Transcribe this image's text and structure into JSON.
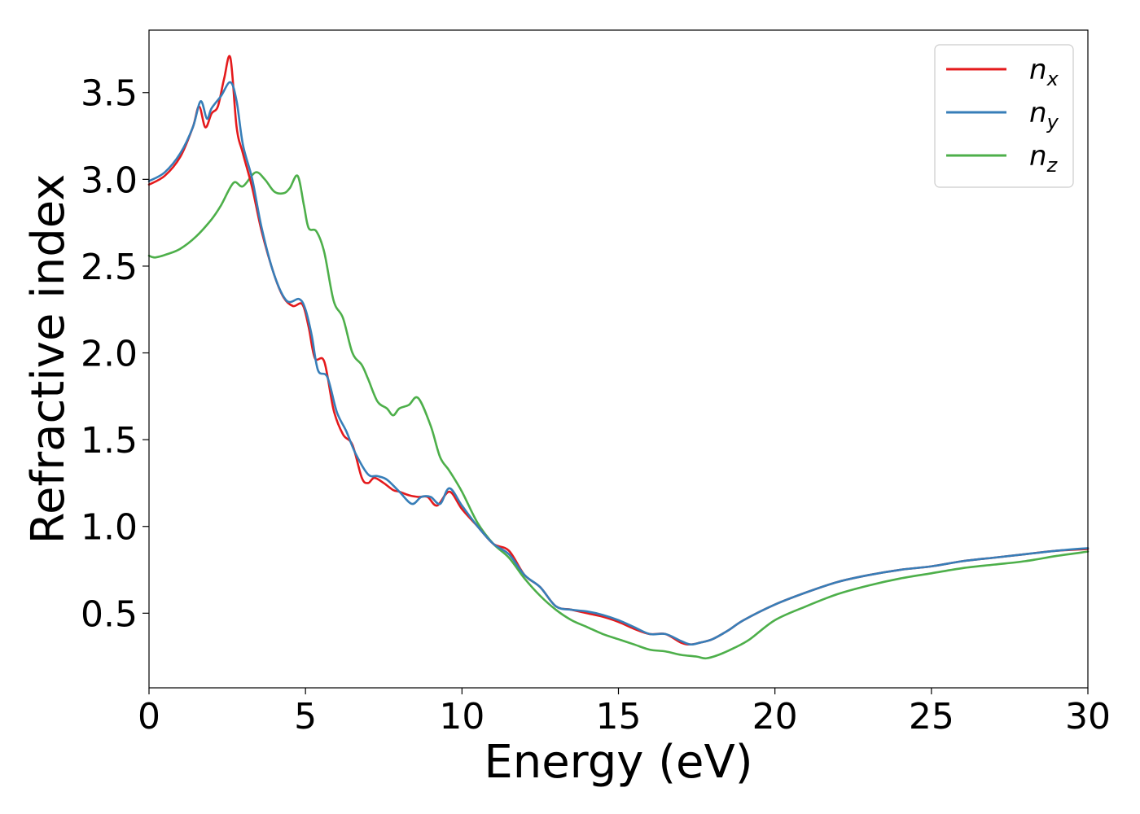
{
  "chart_data": {
    "type": "line",
    "xlabel": "Energy (eV)",
    "ylabel": "Refractive index",
    "xlim": [
      0,
      30
    ],
    "ylim": [
      0.07,
      3.86
    ],
    "xticks": [
      0,
      5,
      10,
      15,
      20,
      25,
      30
    ],
    "xtick_labels": [
      "0",
      "5",
      "10",
      "15",
      "20",
      "25",
      "30"
    ],
    "yticks": [
      0.5,
      1.0,
      1.5,
      2.0,
      2.5,
      3.0,
      3.5
    ],
    "ytick_labels": [
      "0.5",
      "1.0",
      "1.5",
      "2.0",
      "2.5",
      "3.0",
      "3.5"
    ],
    "grid": false,
    "legend_position": "top-right",
    "series": [
      {
        "name": "n_x",
        "label_main": "n",
        "label_sub": "x",
        "color": "#e41a1c",
        "x": [
          0,
          0.5,
          1.0,
          1.4,
          1.6,
          1.8,
          2.0,
          2.2,
          2.4,
          2.6,
          2.8,
          3.0,
          3.3,
          3.6,
          4.0,
          4.3,
          4.6,
          4.9,
          5.1,
          5.3,
          5.6,
          5.9,
          6.2,
          6.5,
          6.8,
          7.0,
          7.2,
          7.5,
          7.8,
          8.0,
          8.3,
          8.6,
          8.9,
          9.2,
          9.6,
          10.0,
          10.5,
          11.0,
          11.5,
          12.0,
          12.5,
          13.0,
          13.5,
          14.0,
          14.5,
          15.0,
          15.5,
          16.0,
          16.5,
          17.0,
          17.3,
          17.6,
          18.0,
          18.5,
          19.0,
          20.0,
          21.0,
          22.0,
          23.0,
          24.0,
          25.0,
          26.0,
          27.0,
          28.0,
          29.0,
          30.0
        ],
        "y": [
          2.97,
          3.02,
          3.13,
          3.3,
          3.42,
          3.3,
          3.38,
          3.42,
          3.58,
          3.7,
          3.3,
          3.15,
          2.95,
          2.7,
          2.45,
          2.32,
          2.27,
          2.28,
          2.15,
          1.97,
          1.95,
          1.67,
          1.53,
          1.47,
          1.28,
          1.25,
          1.28,
          1.25,
          1.21,
          1.2,
          1.18,
          1.17,
          1.17,
          1.12,
          1.2,
          1.1,
          1.0,
          0.9,
          0.86,
          0.72,
          0.65,
          0.54,
          0.52,
          0.5,
          0.48,
          0.45,
          0.41,
          0.38,
          0.38,
          0.33,
          0.32,
          0.33,
          0.35,
          0.4,
          0.46,
          0.55,
          0.62,
          0.68,
          0.72,
          0.75,
          0.77,
          0.8,
          0.82,
          0.84,
          0.86,
          0.87
        ]
      },
      {
        "name": "n_y",
        "label_main": "n",
        "label_sub": "y",
        "color": "#377eb8",
        "x": [
          0,
          0.5,
          1.0,
          1.4,
          1.65,
          1.85,
          2.0,
          2.3,
          2.6,
          2.8,
          3.0,
          3.3,
          3.6,
          4.0,
          4.4,
          4.8,
          5.0,
          5.2,
          5.4,
          5.7,
          6.0,
          6.3,
          6.6,
          7.0,
          7.3,
          7.6,
          8.0,
          8.4,
          8.7,
          9.0,
          9.3,
          9.6,
          10.0,
          10.5,
          11.0,
          11.5,
          12.0,
          12.5,
          13.0,
          13.5,
          14.0,
          14.5,
          15.0,
          15.5,
          16.0,
          16.5,
          17.0,
          17.3,
          17.6,
          18.0,
          18.5,
          19.0,
          20.0,
          21.0,
          22.0,
          23.0,
          24.0,
          25.0,
          26.0,
          27.0,
          28.0,
          29.0,
          30.0
        ],
        "y": [
          2.99,
          3.04,
          3.15,
          3.3,
          3.45,
          3.35,
          3.41,
          3.48,
          3.56,
          3.45,
          3.2,
          3.0,
          2.72,
          2.45,
          2.3,
          2.31,
          2.25,
          2.1,
          1.9,
          1.86,
          1.66,
          1.55,
          1.42,
          1.3,
          1.29,
          1.27,
          1.2,
          1.13,
          1.17,
          1.17,
          1.13,
          1.22,
          1.12,
          1.0,
          0.9,
          0.84,
          0.72,
          0.65,
          0.54,
          0.52,
          0.51,
          0.49,
          0.46,
          0.42,
          0.38,
          0.38,
          0.34,
          0.32,
          0.33,
          0.35,
          0.4,
          0.46,
          0.55,
          0.62,
          0.68,
          0.72,
          0.75,
          0.77,
          0.8,
          0.82,
          0.84,
          0.86,
          0.875
        ]
      },
      {
        "name": "n_z",
        "label_main": "n",
        "label_sub": "z",
        "color": "#4daf4a",
        "x": [
          0,
          0.2,
          0.6,
          1.0,
          1.5,
          2.0,
          2.3,
          2.7,
          3.0,
          3.4,
          3.7,
          4.0,
          4.3,
          4.5,
          4.75,
          4.95,
          5.1,
          5.35,
          5.6,
          5.9,
          6.2,
          6.5,
          6.8,
          7.0,
          7.3,
          7.6,
          7.8,
          8.0,
          8.3,
          8.6,
          9.0,
          9.3,
          9.6,
          10.0,
          10.5,
          11.0,
          11.5,
          12.0,
          12.5,
          13.0,
          13.5,
          14.0,
          14.5,
          15.0,
          15.5,
          16.0,
          16.5,
          17.0,
          17.5,
          17.8,
          18.2,
          18.7,
          19.2,
          20.0,
          21.0,
          22.0,
          23.0,
          24.0,
          25.0,
          26.0,
          27.0,
          28.0,
          29.0,
          30.0
        ],
        "y": [
          2.56,
          2.55,
          2.57,
          2.6,
          2.67,
          2.77,
          2.85,
          2.98,
          2.96,
          3.04,
          3.0,
          2.93,
          2.92,
          2.95,
          3.02,
          2.85,
          2.72,
          2.7,
          2.58,
          2.3,
          2.2,
          2.0,
          1.93,
          1.85,
          1.72,
          1.68,
          1.64,
          1.68,
          1.7,
          1.74,
          1.58,
          1.4,
          1.32,
          1.2,
          1.02,
          0.9,
          0.82,
          0.7,
          0.6,
          0.52,
          0.46,
          0.42,
          0.38,
          0.35,
          0.32,
          0.29,
          0.28,
          0.26,
          0.25,
          0.24,
          0.26,
          0.3,
          0.35,
          0.46,
          0.54,
          0.61,
          0.66,
          0.7,
          0.73,
          0.76,
          0.78,
          0.8,
          0.83,
          0.855
        ]
      }
    ]
  }
}
